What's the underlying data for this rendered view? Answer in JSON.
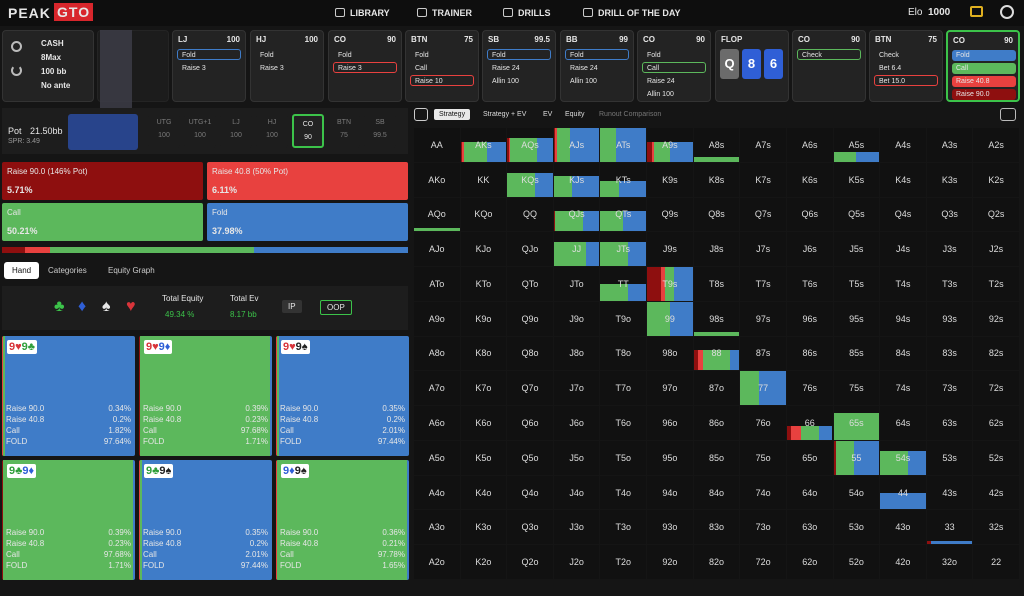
{
  "nav": {
    "logo_left": "PEAK",
    "logo_right": "GTO",
    "items": [
      "LIBRARY",
      "TRAINER",
      "DRILLS",
      "DRILL OF THE DAY"
    ],
    "elo_label": "Elo",
    "elo": "1000"
  },
  "game": {
    "type": "CASH",
    "players": "8Max",
    "stack": "100 bb",
    "ante": "No ante"
  },
  "positions": [
    {
      "pos": "LJ",
      "stack": "100",
      "actions": [
        {
          "label": "Fold",
          "style": "blue"
        },
        {
          "label": "Raise 3",
          "style": "plain"
        }
      ]
    },
    {
      "pos": "HJ",
      "stack": "100",
      "actions": [
        {
          "label": "Fold",
          "style": "plain"
        },
        {
          "label": "Raise 3",
          "style": "plain"
        }
      ]
    },
    {
      "pos": "CO",
      "stack": "90",
      "actions": [
        {
          "label": "Fold",
          "style": "plain"
        },
        {
          "label": "Raise 3",
          "style": "red"
        }
      ]
    },
    {
      "pos": "BTN",
      "stack": "75",
      "actions": [
        {
          "label": "Fold",
          "style": "plain"
        },
        {
          "label": "Call",
          "style": "plain"
        },
        {
          "label": "Raise 10",
          "style": "red"
        }
      ]
    },
    {
      "pos": "SB",
      "stack": "99.5",
      "actions": [
        {
          "label": "Fold",
          "style": "blue"
        },
        {
          "label": "Raise 24",
          "style": "plain"
        },
        {
          "label": "Allin 100",
          "style": "plain"
        }
      ]
    },
    {
      "pos": "BB",
      "stack": "99",
      "actions": [
        {
          "label": "Fold",
          "style": "blue"
        },
        {
          "label": "Raise 24",
          "style": "plain"
        },
        {
          "label": "Allin 100",
          "style": "plain"
        }
      ]
    },
    {
      "pos": "CO",
      "stack": "90",
      "actions": [
        {
          "label": "Fold",
          "style": "plain"
        },
        {
          "label": "Call",
          "style": "green"
        },
        {
          "label": "Raise 24",
          "style": "plain"
        },
        {
          "label": "Allin 100",
          "style": "plain"
        }
      ]
    },
    {
      "pos": "FLOP",
      "cards": [
        {
          "text": "Q",
          "color": "#6b6b6b"
        },
        {
          "text": "8",
          "color": "#2f5fd6"
        },
        {
          "text": "6",
          "color": "#2f5fd6"
        }
      ]
    },
    {
      "pos": "CO",
      "stack": "90",
      "actions": [
        {
          "label": "Check",
          "style": "green"
        }
      ]
    },
    {
      "pos": "BTN",
      "stack": "75",
      "actions": [
        {
          "label": "Check",
          "style": "plain"
        },
        {
          "label": "Bet 6.4",
          "style": "plain"
        },
        {
          "label": "Bet 15.0",
          "style": "red"
        }
      ]
    },
    {
      "pos": "CO",
      "stack": "90",
      "active": true,
      "actions": [
        {
          "label": "Fold",
          "style": "fill-blue"
        },
        {
          "label": "Call",
          "style": "fill-green"
        },
        {
          "label": "Raise 40.8",
          "style": "fill-red"
        },
        {
          "label": "Raise 90.0",
          "style": "fill-dark"
        }
      ]
    }
  ],
  "pot": {
    "label": "Pot",
    "value": "21.50bb",
    "spr": "SPR: 3.49"
  },
  "seats": [
    {
      "pos": "UTG",
      "stack": "100"
    },
    {
      "pos": "UTG+1",
      "stack": "100"
    },
    {
      "pos": "LJ",
      "stack": "100"
    },
    {
      "pos": "HJ",
      "stack": "100"
    },
    {
      "pos": "CO",
      "stack": "90",
      "active": true
    },
    {
      "pos": "BTN",
      "stack": "75"
    },
    {
      "pos": "SB",
      "stack": "99.5"
    }
  ],
  "strategy": {
    "actions": [
      {
        "label": "Raise 90.0 (146% Pot)",
        "value": 5.71,
        "value_label": "5.71%",
        "color": "#8e0f0f"
      },
      {
        "label": "Raise 40.8 (50% Pot)",
        "value": 6.11,
        "value_label": "6.11%",
        "color": "#e8413f"
      },
      {
        "label": "Call",
        "value": 50.21,
        "value_label": "50.21%",
        "color": "#5cb85c"
      },
      {
        "label": "Fold",
        "value": 37.98,
        "value_label": "37.98%",
        "color": "#3f7cc8"
      }
    ]
  },
  "tabs": [
    "Hand",
    "Categories",
    "Equity Graph"
  ],
  "stats": {
    "suits": [
      {
        "text": "♣",
        "color": "#3cc34a"
      },
      {
        "text": "♦",
        "color": "#2f5fd6"
      },
      {
        "text": "♠",
        "color": "#e8e8e8"
      },
      {
        "text": "♥",
        "color": "#d8343a"
      }
    ],
    "equity_label": "Total Equity",
    "equity": "49.34 %",
    "ev_label": "Total Ev",
    "ev": "8.17 bb",
    "ip": "IP",
    "oop": "OOP"
  },
  "hands": {
    "row_labels": [
      "Raise 90.0",
      "Raise 40.8",
      "Call",
      "FOLD"
    ],
    "cards": [
      {
        "cards": [
          {
            "text": "9♥",
            "color": "#d8343a"
          },
          {
            "text": "9♣",
            "color": "#2f9e3a"
          }
        ],
        "values": [
          0.34,
          0.2,
          1.82,
          97.64
        ],
        "value_labels": [
          "0.34%",
          "0.2%",
          "1.82%",
          "97.64%"
        ]
      },
      {
        "cards": [
          {
            "text": "9♥",
            "color": "#d8343a"
          },
          {
            "text": "9♦",
            "color": "#2f5fd6"
          }
        ],
        "values": [
          0.39,
          0.23,
          97.68,
          1.71
        ],
        "value_labels": [
          "0.39%",
          "0.23%",
          "97.68%",
          "1.71%"
        ]
      },
      {
        "cards": [
          {
            "text": "9♥",
            "color": "#d8343a"
          },
          {
            "text": "9♠",
            "color": "#222222"
          }
        ],
        "values": [
          0.35,
          0.2,
          2.01,
          97.44
        ],
        "value_labels": [
          "0.35%",
          "0.2%",
          "2.01%",
          "97.44%"
        ]
      },
      {
        "cards": [
          {
            "text": "9♣",
            "color": "#2f9e3a"
          },
          {
            "text": "9♦",
            "color": "#2f5fd6"
          }
        ],
        "values": [
          0.39,
          0.23,
          97.68,
          1.71
        ],
        "value_labels": [
          "0.39%",
          "0.23%",
          "97.68%",
          "1.71%"
        ]
      },
      {
        "cards": [
          {
            "text": "9♣",
            "color": "#2f9e3a"
          },
          {
            "text": "9♠",
            "color": "#222222"
          }
        ],
        "values": [
          0.35,
          0.2,
          2.01,
          97.44
        ],
        "value_labels": [
          "0.35%",
          "0.2%",
          "2.01%",
          "97.44%"
        ]
      },
      {
        "cards": [
          {
            "text": "9♦",
            "color": "#2f5fd6"
          },
          {
            "text": "9♠",
            "color": "#222222"
          }
        ],
        "values": [
          0.36,
          0.21,
          97.78,
          1.65
        ],
        "value_labels": [
          "0.36%",
          "0.21%",
          "97.78%",
          "1.65%"
        ]
      }
    ]
  },
  "grid": {
    "tabs": [
      "Strategy",
      "Strategy + EV",
      "EV",
      "Equity",
      "Runout Comparison"
    ],
    "rows": [
      [
        "AA",
        "AKs",
        "AQs",
        "AJs",
        "ATs",
        "A9s",
        "A8s",
        "A7s",
        "A6s",
        "A5s",
        "A4s",
        "A3s",
        "A2s"
      ],
      [
        "AKo",
        "KK",
        "KQs",
        "KJs",
        "KTs",
        "K9s",
        "K8s",
        "K7s",
        "K6s",
        "K5s",
        "K4s",
        "K3s",
        "K2s"
      ],
      [
        "AQo",
        "KQo",
        "QQ",
        "QJs",
        "QTs",
        "Q9s",
        "Q8s",
        "Q7s",
        "Q6s",
        "Q5s",
        "Q4s",
        "Q3s",
        "Q2s"
      ],
      [
        "AJo",
        "KJo",
        "QJo",
        "JJ",
        "JTs",
        "J9s",
        "J8s",
        "J7s",
        "J6s",
        "J5s",
        "J4s",
        "J3s",
        "J2s"
      ],
      [
        "ATo",
        "KTo",
        "QTo",
        "JTo",
        "TT",
        "T9s",
        "T8s",
        "T7s",
        "T6s",
        "T5s",
        "T4s",
        "T3s",
        "T2s"
      ],
      [
        "A9o",
        "K9o",
        "Q9o",
        "J9o",
        "T9o",
        "99",
        "98s",
        "97s",
        "96s",
        "95s",
        "94s",
        "93s",
        "92s"
      ],
      [
        "A8o",
        "K8o",
        "Q8o",
        "J8o",
        "T8o",
        "98o",
        "88",
        "87s",
        "86s",
        "85s",
        "84s",
        "83s",
        "82s"
      ],
      [
        "A7o",
        "K7o",
        "Q7o",
        "J7o",
        "T7o",
        "97o",
        "87o",
        "77",
        "76s",
        "75s",
        "74s",
        "73s",
        "72s"
      ],
      [
        "A6o",
        "K6o",
        "Q6o",
        "J6o",
        "T6o",
        "96o",
        "86o",
        "76o",
        "66",
        "65s",
        "64s",
        "63s",
        "62s"
      ],
      [
        "A5o",
        "K5o",
        "Q5o",
        "J5o",
        "T5o",
        "95o",
        "85o",
        "75o",
        "65o",
        "55",
        "54s",
        "53s",
        "52s"
      ],
      [
        "A4o",
        "K4o",
        "Q4o",
        "J4o",
        "T4o",
        "94o",
        "84o",
        "74o",
        "64o",
        "54o",
        "44",
        "43s",
        "42s"
      ],
      [
        "A3o",
        "K3o",
        "Q3o",
        "J3o",
        "T3o",
        "93o",
        "83o",
        "73o",
        "63o",
        "53o",
        "43o",
        "33",
        "32s"
      ],
      [
        "A2o",
        "K2o",
        "Q2o",
        "J2o",
        "T2o",
        "92o",
        "82o",
        "72o",
        "62o",
        "52o",
        "42o",
        "32o",
        "22"
      ]
    ],
    "highlights": [
      {
        "hand": "AKs",
        "weight": 60,
        "mix": [
          4,
          4,
          50,
          42
        ]
      },
      {
        "hand": "AQs",
        "weight": 70,
        "mix": [
          3,
          3,
          60,
          34
        ]
      },
      {
        "hand": "AJs",
        "weight": 100,
        "mix": [
          3,
          3,
          30,
          64
        ]
      },
      {
        "hand": "ATs",
        "weight": 100,
        "mix": [
          0,
          0,
          35,
          65
        ]
      },
      {
        "hand": "A9s",
        "weight": 60,
        "mix": [
          10,
          5,
          35,
          50
        ]
      },
      {
        "hand": "A8s",
        "weight": 15,
        "mix": [
          0,
          0,
          100,
          0
        ]
      },
      {
        "hand": "A5s",
        "weight": 30,
        "mix": [
          0,
          0,
          50,
          50
        ]
      },
      {
        "hand": "AQo",
        "weight": 10,
        "mix": [
          0,
          0,
          100,
          0
        ]
      },
      {
        "hand": "KQs",
        "weight": 70,
        "mix": [
          0,
          0,
          60,
          40
        ]
      },
      {
        "hand": "KJs",
        "weight": 60,
        "mix": [
          0,
          0,
          40,
          60
        ]
      },
      {
        "hand": "KTs",
        "weight": 45,
        "mix": [
          0,
          0,
          40,
          60
        ]
      },
      {
        "hand": "QJs",
        "weight": 60,
        "mix": [
          3,
          0,
          60,
          37
        ]
      },
      {
        "hand": "QTs",
        "weight": 60,
        "mix": [
          0,
          0,
          50,
          50
        ]
      },
      {
        "hand": "JJ",
        "weight": 70,
        "mix": [
          0,
          0,
          70,
          30
        ]
      },
      {
        "hand": "JTs",
        "weight": 70,
        "mix": [
          0,
          0,
          60,
          40
        ]
      },
      {
        "hand": "TT",
        "weight": 50,
        "mix": [
          0,
          0,
          60,
          40
        ]
      },
      {
        "hand": "T9s",
        "weight": 100,
        "mix": [
          30,
          10,
          20,
          40
        ]
      },
      {
        "hand": "99",
        "weight": 100,
        "mix": [
          0,
          0,
          50,
          50
        ]
      },
      {
        "hand": "98s",
        "weight": 10,
        "mix": [
          0,
          0,
          100,
          0
        ]
      },
      {
        "hand": "88",
        "weight": 60,
        "mix": [
          10,
          10,
          60,
          20
        ]
      },
      {
        "hand": "77",
        "weight": 100,
        "mix": [
          0,
          0,
          40,
          60
        ]
      },
      {
        "hand": "66",
        "weight": 40,
        "mix": [
          10,
          20,
          40,
          30
        ]
      },
      {
        "hand": "65s",
        "weight": 80,
        "mix": [
          0,
          0,
          100,
          0
        ]
      },
      {
        "hand": "55",
        "weight": 100,
        "mix": [
          5,
          0,
          40,
          55
        ]
      },
      {
        "hand": "54s",
        "weight": 70,
        "mix": [
          0,
          0,
          60,
          40
        ]
      },
      {
        "hand": "44",
        "weight": 50,
        "mix": [
          0,
          0,
          0,
          100
        ]
      },
      {
        "hand": "33",
        "weight": 10,
        "mix": [
          10,
          0,
          0,
          90
        ]
      }
    ]
  }
}
